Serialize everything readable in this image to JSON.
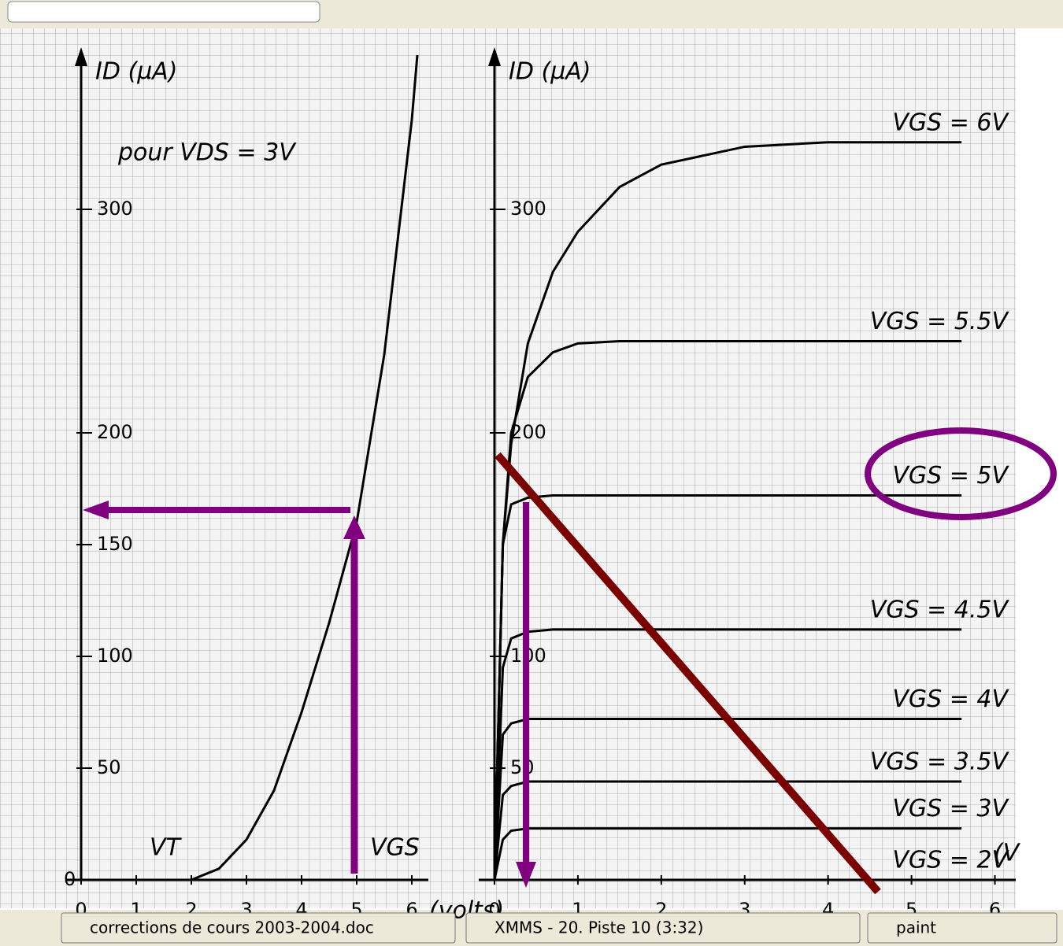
{
  "chart_data": [
    {
      "type": "line",
      "ylabel": "ID (µA)",
      "xlabel": "(volts)",
      "annotations": [
        "pour VDS = 3V",
        "VT",
        "VGS"
      ],
      "x": [
        2,
        2.5,
        3,
        3.5,
        4,
        4.5,
        5,
        5.5,
        6,
        6.1
      ],
      "values": [
        0,
        5,
        18,
        40,
        75,
        115,
        160,
        235,
        340,
        369
      ],
      "color": "#000000",
      "xlim": [
        0,
        6.3
      ],
      "ylim": [
        0,
        369
      ],
      "xticks": [
        0,
        1,
        2,
        3,
        4,
        5,
        6
      ],
      "yticks": [
        0,
        50,
        100,
        150,
        200,
        300
      ]
    },
    {
      "type": "line",
      "ylabel": "ID (µA)",
      "xlabel": "(V",
      "x": [
        0,
        0.1,
        0.2,
        0.4,
        0.7,
        1,
        1.5,
        2,
        3,
        4,
        5.6
      ],
      "series": [
        {
          "name": "VGS = 6V",
          "color": "#000000",
          "values": [
            0,
            150,
            195,
            240,
            272,
            290,
            310,
            320,
            328,
            330,
            330
          ]
        },
        {
          "name": "VGS = 5.5V",
          "color": "#000000",
          "values": [
            0,
            150,
            200,
            225,
            236,
            240,
            241,
            241,
            241,
            241,
            241
          ]
        },
        {
          "name": "VGS = 5V",
          "color": "#000000",
          "values": [
            0,
            150,
            168,
            171,
            172,
            172,
            172,
            172,
            172,
            172,
            172
          ]
        },
        {
          "name": "VGS = 4.5V",
          "color": "#000000",
          "values": [
            0,
            95,
            108,
            111,
            112,
            112,
            112,
            112,
            112,
            112,
            112
          ]
        },
        {
          "name": "VGS = 4V",
          "color": "#000000",
          "values": [
            0,
            65,
            70,
            72,
            72,
            72,
            72,
            72,
            72,
            72,
            72
          ]
        },
        {
          "name": "VGS = 3.5V",
          "color": "#000000",
          "values": [
            0,
            38,
            42,
            44,
            44,
            44,
            44,
            44,
            44,
            44,
            44
          ]
        },
        {
          "name": "VGS = 3V",
          "color": "#000000",
          "values": [
            0,
            18,
            22,
            23,
            23,
            23,
            23,
            23,
            23,
            23,
            23
          ]
        },
        {
          "name": "VGS = 2V",
          "color": "#000000",
          "values": [
            0,
            0,
            0,
            0,
            0,
            0,
            0,
            0,
            0,
            0,
            0
          ]
        }
      ],
      "xlim": [
        0,
        6.25
      ],
      "ylim": [
        0,
        369
      ],
      "xticks": [
        0,
        1,
        2,
        3,
        4,
        5,
        6
      ],
      "yticks": [
        50,
        100,
        200,
        300
      ]
    }
  ],
  "taskbar": {
    "items": [
      "corrections de cours 2003-2004.doc",
      "XMMS - 20. Piste 10 (3:32)",
      "paint"
    ]
  }
}
